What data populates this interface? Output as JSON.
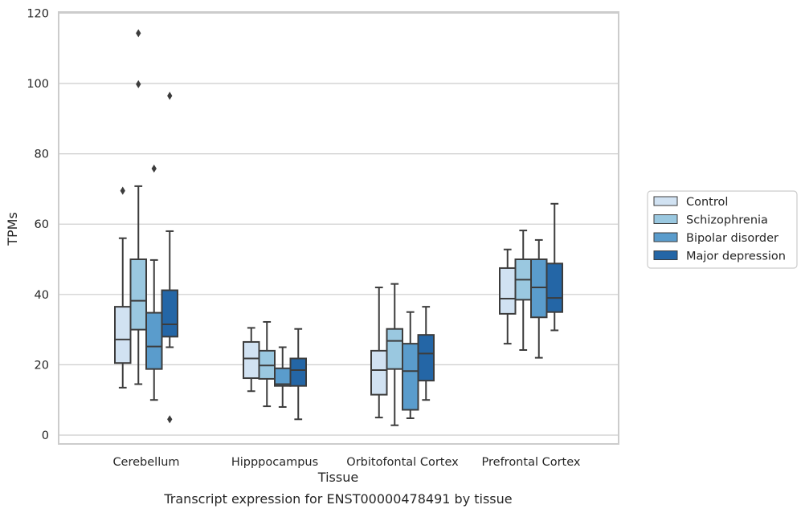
{
  "chart_data": {
    "type": "box",
    "caption": "Transcript expression for ENST00000478491 by tissue",
    "xlabel": "Tissue",
    "ylabel": "TPMs",
    "ylim": [
      -2.5,
      120
    ],
    "yticks": [
      0,
      20,
      40,
      60,
      80,
      100,
      120
    ],
    "grid": "horizontal",
    "legend_position": "right",
    "categories": [
      "Cerebellum",
      "Hipppocampus",
      "Orbitofontal Cortex",
      "Prefrontal Cortex"
    ],
    "series": [
      {
        "name": "Control",
        "color": "#d1e2f2",
        "boxes": [
          {
            "whisker_low": 13.5,
            "q1": 20.5,
            "median": 27.2,
            "q3": 36.5,
            "whisker_high": 56.0,
            "outliers": [
              69.5
            ]
          },
          {
            "whisker_low": 12.5,
            "q1": 16.2,
            "median": 21.8,
            "q3": 26.5,
            "whisker_high": 30.5,
            "outliers": []
          },
          {
            "whisker_low": 5.0,
            "q1": 11.5,
            "median": 18.5,
            "q3": 24.0,
            "whisker_high": 42.0,
            "outliers": []
          },
          {
            "whisker_low": 26.0,
            "q1": 34.5,
            "median": 38.8,
            "q3": 47.5,
            "whisker_high": 52.8,
            "outliers": []
          }
        ]
      },
      {
        "name": "Schizophrenia",
        "color": "#9ac8e0",
        "boxes": [
          {
            "whisker_low": 14.5,
            "q1": 30.0,
            "median": 38.2,
            "q3": 50.0,
            "whisker_high": 70.8,
            "outliers": [
              99.8,
              114.3
            ]
          },
          {
            "whisker_low": 8.2,
            "q1": 16.0,
            "median": 19.8,
            "q3": 24.0,
            "whisker_high": 32.2,
            "outliers": []
          },
          {
            "whisker_low": 2.8,
            "q1": 18.8,
            "median": 26.8,
            "q3": 30.2,
            "whisker_high": 43.0,
            "outliers": []
          },
          {
            "whisker_low": 24.2,
            "q1": 38.5,
            "median": 44.2,
            "q3": 50.0,
            "whisker_high": 58.2,
            "outliers": []
          }
        ]
      },
      {
        "name": "Bipolar disorder",
        "color": "#5a9ccc",
        "boxes": [
          {
            "whisker_low": 10.0,
            "q1": 18.8,
            "median": 25.2,
            "q3": 34.8,
            "whisker_high": 49.8,
            "outliers": [
              75.8
            ]
          },
          {
            "whisker_low": 8.0,
            "q1": 14.0,
            "median": 14.5,
            "q3": 19.0,
            "whisker_high": 25.0,
            "outliers": []
          },
          {
            "whisker_low": 4.8,
            "q1": 7.2,
            "median": 18.2,
            "q3": 26.0,
            "whisker_high": 35.0,
            "outliers": []
          },
          {
            "whisker_low": 22.0,
            "q1": 33.5,
            "median": 42.0,
            "q3": 50.0,
            "whisker_high": 55.5,
            "outliers": []
          }
        ]
      },
      {
        "name": "Major depression",
        "color": "#2466a6",
        "boxes": [
          {
            "whisker_low": 25.0,
            "q1": 28.0,
            "median": 31.5,
            "q3": 41.2,
            "whisker_high": 58.0,
            "outliers": [
              96.5,
              4.5
            ]
          },
          {
            "whisker_low": 4.5,
            "q1": 14.0,
            "median": 18.5,
            "q3": 21.8,
            "whisker_high": 30.2,
            "outliers": []
          },
          {
            "whisker_low": 10.0,
            "q1": 15.5,
            "median": 23.2,
            "q3": 28.5,
            "whisker_high": 36.5,
            "outliers": []
          },
          {
            "whisker_low": 29.8,
            "q1": 35.0,
            "median": 39.0,
            "q3": 48.8,
            "whisker_high": 65.8,
            "outliers": []
          }
        ]
      }
    ]
  }
}
